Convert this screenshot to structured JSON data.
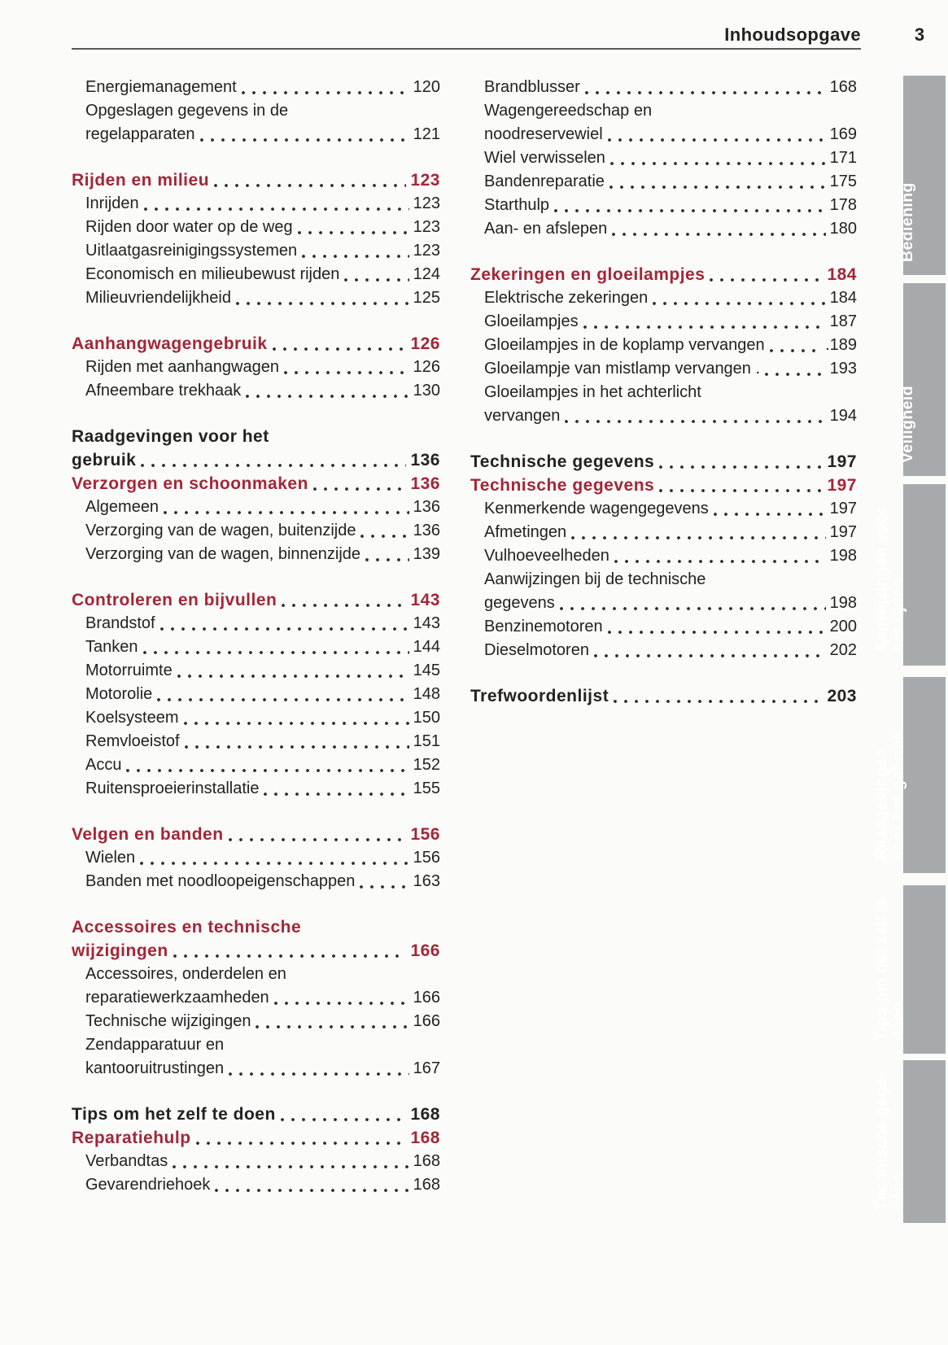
{
  "header": {
    "title": "Inhoudsopgave",
    "page_number": "3"
  },
  "colors": {
    "accent_red": "#a32638",
    "tab_gray": "#a6aaac",
    "text": "#232122",
    "rule": "#58585a"
  },
  "columns": {
    "left": [
      [
        {
          "t": "Energiemanagement",
          "p": "120",
          "s": "e"
        },
        {
          "t": "Opgeslagen gegevens in de",
          "p": null,
          "s": "e"
        },
        {
          "t": "regelapparaten",
          "p": "121",
          "s": "e"
        }
      ],
      [
        {
          "t": "Rijden en milieu",
          "p": "123",
          "s": "r"
        },
        {
          "t": "Inrijden",
          "p": "123",
          "s": "e"
        },
        {
          "t": "Rijden door water op de weg",
          "p": "123",
          "s": "e"
        },
        {
          "t": "Uitlaatgasreinigingssystemen",
          "p": "123",
          "s": "e"
        },
        {
          "t": "Economisch en milieubewust rijden",
          "p": "124",
          "s": "e"
        },
        {
          "t": "Milieuvriendelijkheid",
          "p": "125",
          "s": "e"
        }
      ],
      [
        {
          "t": "Aanhangwagengebruik",
          "p": "126",
          "s": "r"
        },
        {
          "t": "Rijden met aanhangwagen",
          "p": "126",
          "s": "e"
        },
        {
          "t": "Afneembare trekhaak",
          "p": "130",
          "s": "e"
        }
      ],
      [
        {
          "t": "Raadgevingen voor het",
          "p": null,
          "s": "b"
        },
        {
          "t": "gebruik",
          "p": "136",
          "s": "b"
        },
        {
          "t": "Verzorgen en schoonmaken",
          "p": "136",
          "s": "r"
        },
        {
          "t": "Algemeen",
          "p": "136",
          "s": "e"
        },
        {
          "t": "Verzorging van de wagen, buitenzijde",
          "p": "136",
          "s": "e"
        },
        {
          "t": "Verzorging van de wagen, binnenzijde",
          "p": "139",
          "s": "e"
        }
      ],
      [
        {
          "t": "Controleren en bijvullen",
          "p": "143",
          "s": "r"
        },
        {
          "t": "Brandstof",
          "p": "143",
          "s": "e"
        },
        {
          "t": "Tanken",
          "p": "144",
          "s": "e"
        },
        {
          "t": "Motorruimte",
          "p": "145",
          "s": "e"
        },
        {
          "t": "Motorolie",
          "p": "148",
          "s": "e"
        },
        {
          "t": "Koelsysteem",
          "p": "150",
          "s": "e"
        },
        {
          "t": "Remvloeistof",
          "p": "151",
          "s": "e"
        },
        {
          "t": "Accu",
          "p": "152",
          "s": "e"
        },
        {
          "t": "Ruitensproeierinstallatie",
          "p": "155",
          "s": "e"
        }
      ],
      [
        {
          "t": "Velgen en banden",
          "p": "156",
          "s": "r"
        },
        {
          "t": "Wielen",
          "p": "156",
          "s": "e"
        },
        {
          "t": "Banden met noodloopeigenschappen",
          "p": "163",
          "s": "e"
        }
      ],
      [
        {
          "t": "Accessoires en technische",
          "p": null,
          "s": "r"
        },
        {
          "t": "wijzigingen",
          "p": "166",
          "s": "r"
        },
        {
          "t": "Accessoires, onderdelen en",
          "p": null,
          "s": "e"
        },
        {
          "t": "reparatiewerkzaamheden",
          "p": "166",
          "s": "e"
        },
        {
          "t": "Technische wijzigingen",
          "p": "166",
          "s": "e"
        },
        {
          "t": "Zendapparatuur en",
          "p": null,
          "s": "e"
        },
        {
          "t": "kantooruitrustingen",
          "p": "167",
          "s": "e"
        }
      ],
      [
        {
          "t": "Tips om het zelf te doen",
          "p": "168",
          "s": "b"
        },
        {
          "t": "Reparatiehulp",
          "p": "168",
          "s": "r"
        },
        {
          "t": "Verbandtas",
          "p": "168",
          "s": "e"
        },
        {
          "t": "Gevarendriehoek",
          "p": "168",
          "s": "e"
        }
      ]
    ],
    "right": [
      [
        {
          "t": "Brandblusser",
          "p": "168",
          "s": "e"
        },
        {
          "t": "Wagengereedschap en",
          "p": null,
          "s": "e"
        },
        {
          "t": "noodreservewiel",
          "p": "169",
          "s": "e"
        },
        {
          "t": "Wiel verwisselen",
          "p": "171",
          "s": "e"
        },
        {
          "t": "Bandenreparatie",
          "p": "175",
          "s": "e"
        },
        {
          "t": "Starthulp",
          "p": "178",
          "s": "e"
        },
        {
          "t": "Aan- en afslepen",
          "p": "180",
          "s": "e"
        }
      ],
      [
        {
          "t": "Zekeringen en gloeilampjes",
          "p": "184",
          "s": "r"
        },
        {
          "t": "Elektrische zekeringen",
          "p": "184",
          "s": "e"
        },
        {
          "t": "Gloeilampjes",
          "p": "187",
          "s": "e"
        },
        {
          "t": "Gloeilampjes in de koplamp vervangen",
          "p": ".189",
          "s": "e"
        },
        {
          "t": "Gloeilampje van mistlamp vervangen .",
          "p": "193",
          "s": "e"
        },
        {
          "t": "Gloeilampjes in het achterlicht",
          "p": null,
          "s": "e"
        },
        {
          "t": "vervangen",
          "p": "194",
          "s": "e"
        }
      ],
      [
        {
          "t": "Technische gegevens",
          "p": "197",
          "s": "b"
        },
        {
          "t": "Technische gegevens",
          "p": "197",
          "s": "r"
        },
        {
          "t": "Kenmerkende wagengegevens",
          "p": "197",
          "s": "e"
        },
        {
          "t": "Afmetingen",
          "p": "197",
          "s": "e"
        },
        {
          "t": "Vulhoeveelheden",
          "p": "198",
          "s": "e"
        },
        {
          "t": "Aanwijzingen bij de technische",
          "p": null,
          "s": "e"
        },
        {
          "t": "gegevens",
          "p": "198",
          "s": "e"
        },
        {
          "t": "Benzinemotoren",
          "p": "200",
          "s": "e"
        },
        {
          "t": "Dieselmotoren",
          "p": "202",
          "s": "e"
        }
      ],
      [
        {
          "t": "Trefwoordenlijst",
          "p": "203",
          "s": "b"
        }
      ]
    ]
  },
  "sidebar_tabs": [
    {
      "lines": [
        "Bediening"
      ]
    },
    {
      "lines": [
        "Veiligheid"
      ]
    },
    {
      "lines": [
        "Aanwijzingen voor",
        "het rijden"
      ]
    },
    {
      "lines": [
        "Raadgevingen",
        "voor het gebruik"
      ]
    },
    {
      "lines": [
        "Tips om het zelf te",
        "doen"
      ]
    },
    {
      "lines": [
        "Technische gege-",
        "vens"
      ]
    }
  ]
}
